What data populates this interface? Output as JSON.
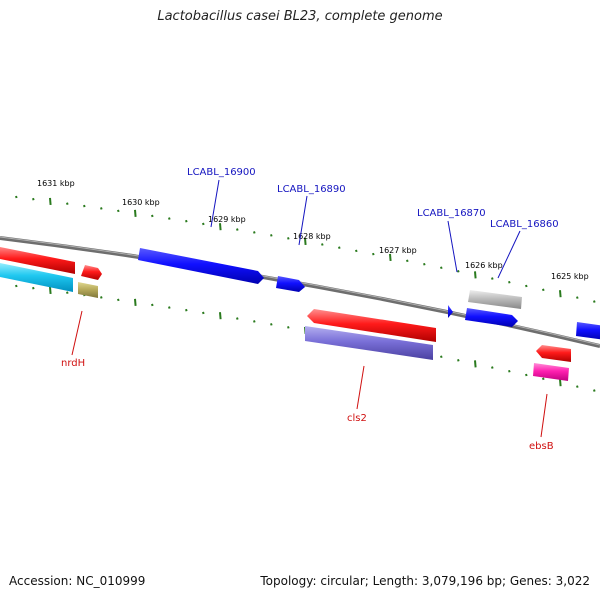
{
  "title": "Lactobacillus casei BL23, complete genome",
  "footer": {
    "accession": "Accession: NC_010999",
    "summary": "Topology: circular; Length: 3,079,196 bp; Genes: 3,022"
  },
  "colors": {
    "backbone": "#777777",
    "tick": "#2a7a1e",
    "label_blue": "#1515c0",
    "label_red": "#d01010"
  },
  "ticks": [
    "1631 kbp",
    "1630 kbp",
    "1629 kbp",
    "1628 kbp",
    "1627 kbp",
    "1626 kbp",
    "1625 kbp"
  ],
  "gene_labels": [
    {
      "text": "LCABL_16900",
      "color": "blue"
    },
    {
      "text": "LCABL_16890",
      "color": "blue"
    },
    {
      "text": "LCABL_16870",
      "color": "blue"
    },
    {
      "text": "LCABL_16860",
      "color": "blue"
    },
    {
      "text": "nrdH",
      "color": "red"
    },
    {
      "text": "cls2",
      "color": "red"
    },
    {
      "text": "ebsB",
      "color": "red"
    }
  ],
  "features": [
    {
      "name": "feature-red-left-top",
      "color": "red"
    },
    {
      "name": "feature-cyan-left",
      "color": "cyan"
    },
    {
      "name": "feature-nrdH-red",
      "color": "red"
    },
    {
      "name": "feature-nrdH-olive",
      "color": "olive"
    },
    {
      "name": "feature-lcabl-16900",
      "color": "blue"
    },
    {
      "name": "feature-lcabl-16890",
      "color": "blue"
    },
    {
      "name": "feature-cls2-red",
      "color": "red"
    },
    {
      "name": "feature-cls2-purple",
      "color": "purple"
    },
    {
      "name": "feature-lcabl-16870",
      "color": "blue"
    },
    {
      "name": "feature-lcabl-16860-gray",
      "color": "gray"
    },
    {
      "name": "feature-blue-mid-right",
      "color": "blue"
    },
    {
      "name": "feature-blue-far-right",
      "color": "blue"
    },
    {
      "name": "feature-ebsB-red",
      "color": "red"
    },
    {
      "name": "feature-ebsB-magenta",
      "color": "magenta"
    }
  ]
}
